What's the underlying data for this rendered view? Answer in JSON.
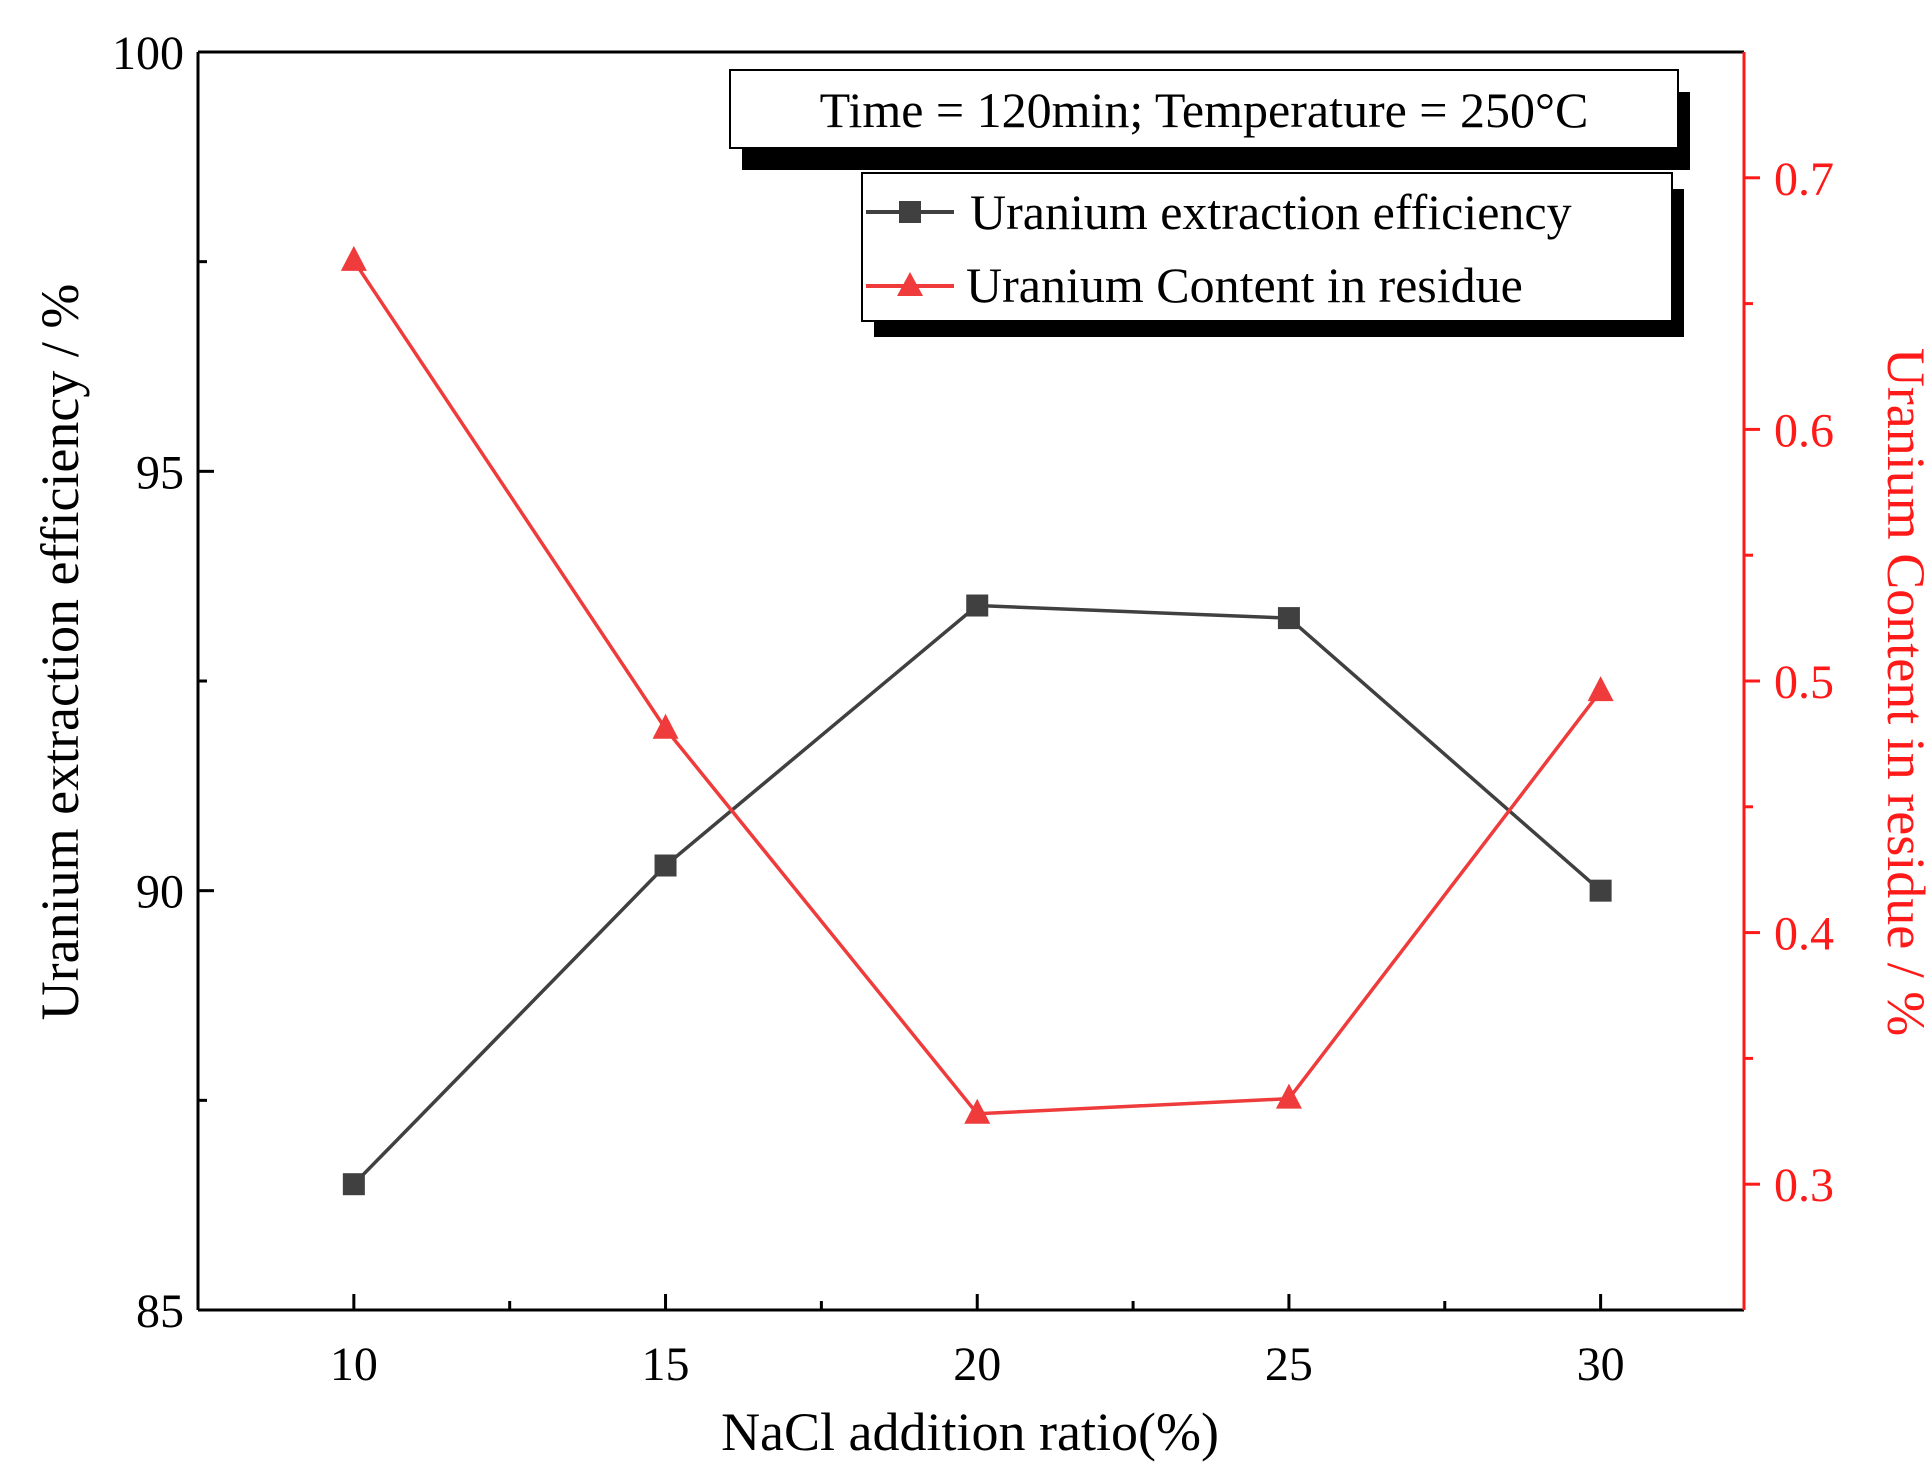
{
  "colors": {
    "left_axis": "#000000",
    "right_axis": "#ff1a1a",
    "series_efficiency": "#404040",
    "series_content": "#ef3b3b"
  },
  "chart_data": {
    "type": "line",
    "title": "",
    "annotation": "Time = 120min; Temperature = 250°C",
    "xlabel": "NaCl addition ratio(%)",
    "ylabel_left": "Uranium extraction efficiency / %",
    "ylabel_right": "Uranium Content in residue / %",
    "x": [
      10,
      15,
      20,
      25,
      30
    ],
    "xlim": [
      7.5,
      32.3
    ],
    "xticks": [
      10,
      15,
      20,
      25,
      30
    ],
    "ylim_left": [
      85,
      100
    ],
    "yticks_left": [
      85,
      90,
      95,
      100
    ],
    "ylim_right": [
      0.25,
      0.75
    ],
    "yticks_right": [
      0.3,
      0.4,
      0.5,
      0.6,
      0.7
    ],
    "legend_position": "top-right",
    "series": [
      {
        "name": "Uranium extraction efficiency",
        "axis": "left",
        "marker": "square",
        "values": [
          86.5,
          90.3,
          93.4,
          93.25,
          90.0
        ]
      },
      {
        "name": "Uranium Content in residue",
        "axis": "right",
        "marker": "triangle",
        "values": [
          0.667,
          0.481,
          0.328,
          0.334,
          0.496
        ]
      }
    ]
  }
}
